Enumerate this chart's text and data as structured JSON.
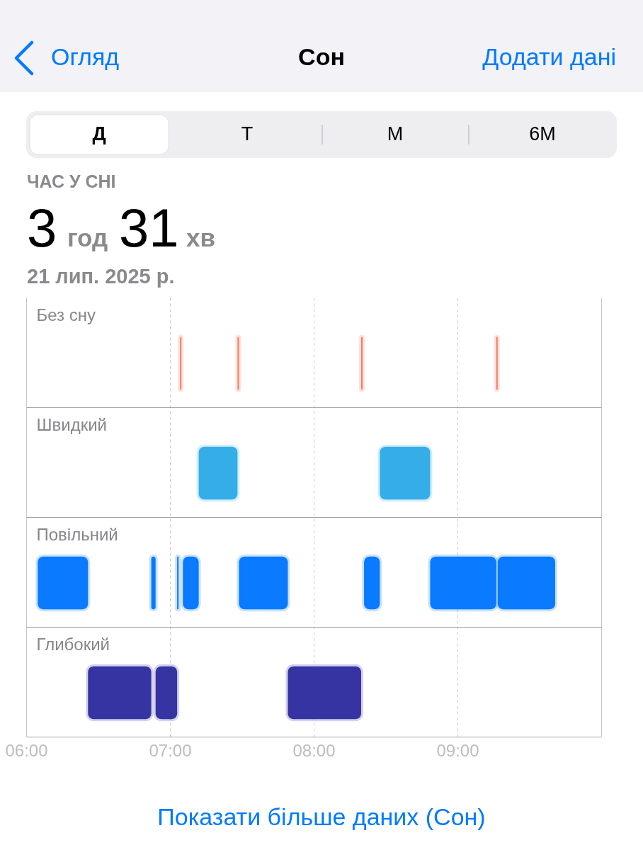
{
  "chart_data": {
    "type": "bar",
    "orientation": "horizontal",
    "title": "Сон",
    "categories": [
      "Без сну",
      "Швидкий",
      "Повільний",
      "Глибокий"
    ],
    "series": [
      {
        "colors": [
          "#f57d66",
          "#35aee8",
          "#0a7aff",
          "#3634a3"
        ],
        "base": [
          7.07,
          7.2,
          6.08,
          6.43
        ],
        "values": [
          0.01,
          0.27,
          0.35,
          0.44
        ]
      },
      {
        "colors": [
          "#f57d66",
          "#35aee8",
          "#0a7aff",
          "#3634a3"
        ],
        "base": [
          7.47,
          8.46,
          6.87,
          6.9
        ],
        "values": [
          0.01,
          0.35,
          0.03,
          0.15
        ]
      },
      {
        "colors": [
          "#f57d66",
          "#35aee8",
          "#0a7aff",
          "#3634a3"
        ],
        "base": [
          8.33,
          null,
          7.05,
          7.82
        ],
        "values": [
          0.01,
          null,
          0.01,
          0.51
        ]
      },
      {
        "colors": [
          "#f57d66",
          "#35aee8",
          "#0a7aff",
          "#3634a3"
        ],
        "base": [
          9.27,
          null,
          7.09,
          null
        ],
        "values": [
          0.01,
          null,
          0.11,
          null
        ]
      },
      {
        "colors": [
          "#f57d66",
          "#35aee8",
          "#0a7aff",
          "#3634a3"
        ],
        "base": [
          null,
          null,
          7.48,
          null
        ],
        "values": [
          null,
          null,
          0.34,
          null
        ]
      },
      {
        "colors": [
          "#f57d66",
          "#35aee8",
          "#0a7aff",
          "#3634a3"
        ],
        "base": [
          null,
          null,
          8.35,
          null
        ],
        "values": [
          null,
          null,
          0.11,
          null
        ]
      },
      {
        "colors": [
          "#f57d66",
          "#35aee8",
          "#0a7aff",
          "#3634a3"
        ],
        "base": [
          null,
          null,
          8.81,
          null
        ],
        "values": [
          null,
          null,
          0.46,
          null
        ]
      },
      {
        "colors": [
          "#f57d66",
          "#35aee8",
          "#0a7aff",
          "#3634a3"
        ],
        "base": [
          null,
          null,
          9.28,
          null
        ],
        "values": [
          null,
          null,
          0.4,
          null
        ]
      }
    ],
    "xlim": [
      6,
      10
    ],
    "xticks": [
      {
        "value": 6,
        "label": "06:00"
      },
      {
        "value": 7,
        "label": "07:00"
      },
      {
        "value": 8,
        "label": "08:00"
      },
      {
        "value": 9,
        "label": "09:00"
      },
      {
        "value": 10,
        "label": null
      }
    ],
    "grid": true,
    "annotations": [
      "Огляд",
      "Додати дані",
      "Д",
      "Т",
      "М",
      "6М",
      "ЧАС У СНІ",
      "3",
      "год",
      "31",
      "хв",
      "21 лип. 2025 р.",
      "Показати більше даних (Сон)"
    ]
  }
}
